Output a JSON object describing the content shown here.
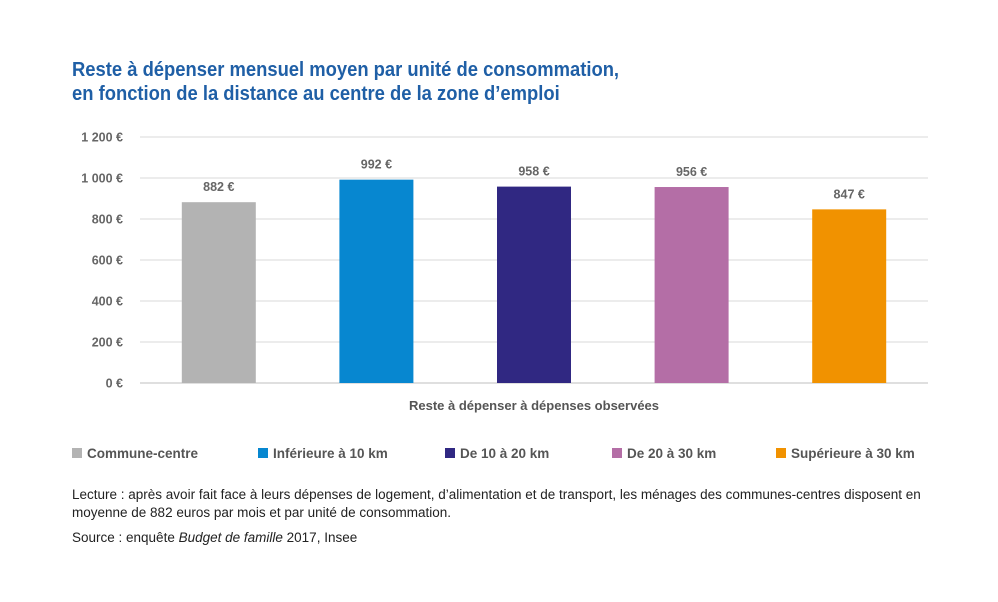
{
  "title": {
    "line1": "Reste à dépenser mensuel moyen par unité de consommation,",
    "line2": "en fonction de la distance au centre de la zone d’emploi"
  },
  "chart_data": {
    "type": "bar",
    "title": "Reste à dépenser mensuel moyen par unité de consommation, en fonction de la distance au centre de la zone d’emploi",
    "xlabel": "Reste à dépenser à dépenses observées",
    "ylabel": "",
    "ylim": [
      0,
      1200
    ],
    "yticks": [
      0,
      200,
      400,
      600,
      800,
      1000,
      1200
    ],
    "ytick_labels": [
      "0 €",
      "200 €",
      "400 €",
      "600 €",
      "800 €",
      "1 000 €",
      "1 200 €"
    ],
    "categories": [
      "Reste à dépenser à dépenses observées"
    ],
    "series": [
      {
        "name": "Commune-centre",
        "values": [
          882
        ],
        "label": "882 €",
        "color": "#b3b3b3"
      },
      {
        "name": "Inférieure à 10 km",
        "values": [
          992
        ],
        "label": "992 €",
        "color": "#0787d0"
      },
      {
        "name": "De 10 à 20 km",
        "values": [
          958
        ],
        "label": "958 €",
        "color": "#302882"
      },
      {
        "name": "De 20 à 30 km",
        "values": [
          956
        ],
        "label": "956 €",
        "color": "#b46ea6"
      },
      {
        "name": "Supérieure à 30 km",
        "values": [
          847
        ],
        "label": "847 €",
        "color": "#f19200"
      }
    ],
    "grid": true,
    "legend": "bottom"
  },
  "note": {
    "lecture": "Lecture : après avoir fait face à leurs dépenses de logement, d’alimentation et de transport, les ménages des communes-centres disposent en moyenne de 882 euros par mois et par unité de consommation.",
    "source_prefix": "Source : enquête ",
    "source_italic": "Budget de famille",
    "source_suffix": " 2017, Insee"
  }
}
